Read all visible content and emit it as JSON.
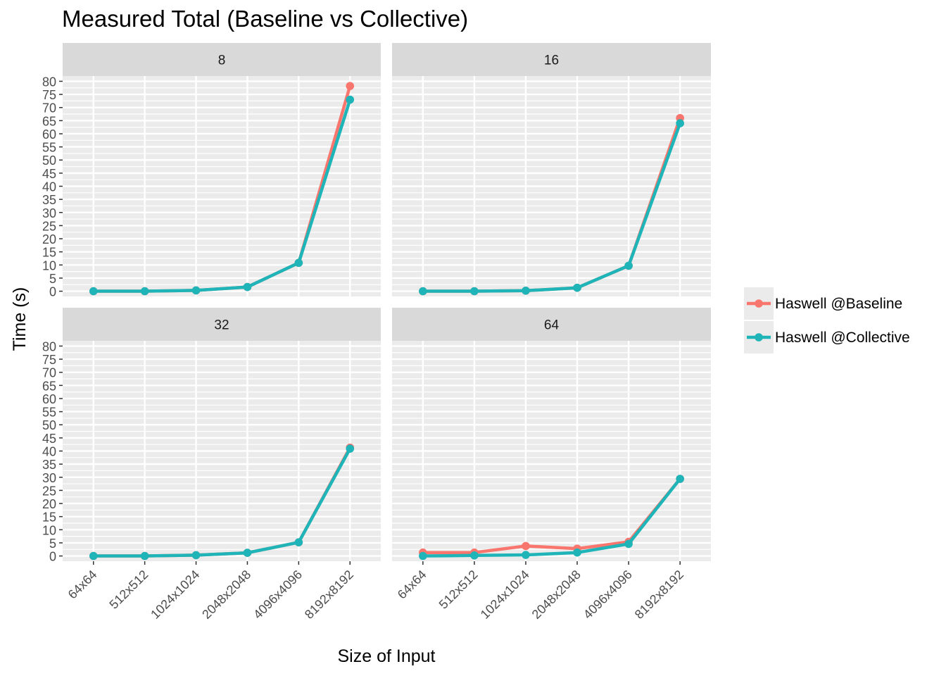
{
  "chart_data": {
    "type": "line",
    "title": "Measured Total (Baseline vs Collective)",
    "xlabel": "Size of Input",
    "ylabel": "Time (s)",
    "categories": [
      "64x64",
      "512x512",
      "1024x1024",
      "2048x2048",
      "4096x4096",
      "8192x8192"
    ],
    "y_ticks": [
      "0",
      "5",
      "10",
      "15",
      "20",
      "25",
      "30",
      "35",
      "40",
      "45",
      "50",
      "55",
      "60",
      "65",
      "70",
      "75",
      "80"
    ],
    "ylim": [
      -2,
      82
    ],
    "grid": true,
    "legend_position": "right",
    "colors": {
      "baseline": "#F8766D",
      "collective": "#1FB5B8",
      "panel_bg": "#EBEBEB",
      "strip_bg": "#D9D9D9"
    },
    "panels": [
      {
        "label": "8",
        "series": [
          {
            "name": "Haswell @Baseline",
            "values": [
              0,
              0,
              0.3,
              1.6,
              10.8,
              78.2
            ]
          },
          {
            "name": "Haswell @Collective",
            "values": [
              0,
              0,
              0.3,
              1.6,
              10.8,
              73.0
            ]
          }
        ]
      },
      {
        "label": "16",
        "series": [
          {
            "name": "Haswell @Baseline",
            "values": [
              0,
              0,
              0.2,
              1.3,
              9.7,
              66.0
            ]
          },
          {
            "name": "Haswell @Collective",
            "values": [
              0,
              0,
              0.2,
              1.3,
              9.7,
              64.0
            ]
          }
        ]
      },
      {
        "label": "32",
        "series": [
          {
            "name": "Haswell @Baseline",
            "values": [
              0,
              0,
              0.3,
              1.2,
              5.2,
              41.3
            ]
          },
          {
            "name": "Haswell @Collective",
            "values": [
              0,
              0,
              0.3,
              1.2,
              5.2,
              40.9
            ]
          }
        ]
      },
      {
        "label": "64",
        "series": [
          {
            "name": "Haswell @Baseline",
            "values": [
              1.3,
              1.3,
              3.8,
              2.8,
              5.4,
              29.4
            ]
          },
          {
            "name": "Haswell @Collective",
            "values": [
              0,
              0.2,
              0.4,
              1.3,
              4.6,
              29.4
            ]
          }
        ]
      }
    ]
  }
}
